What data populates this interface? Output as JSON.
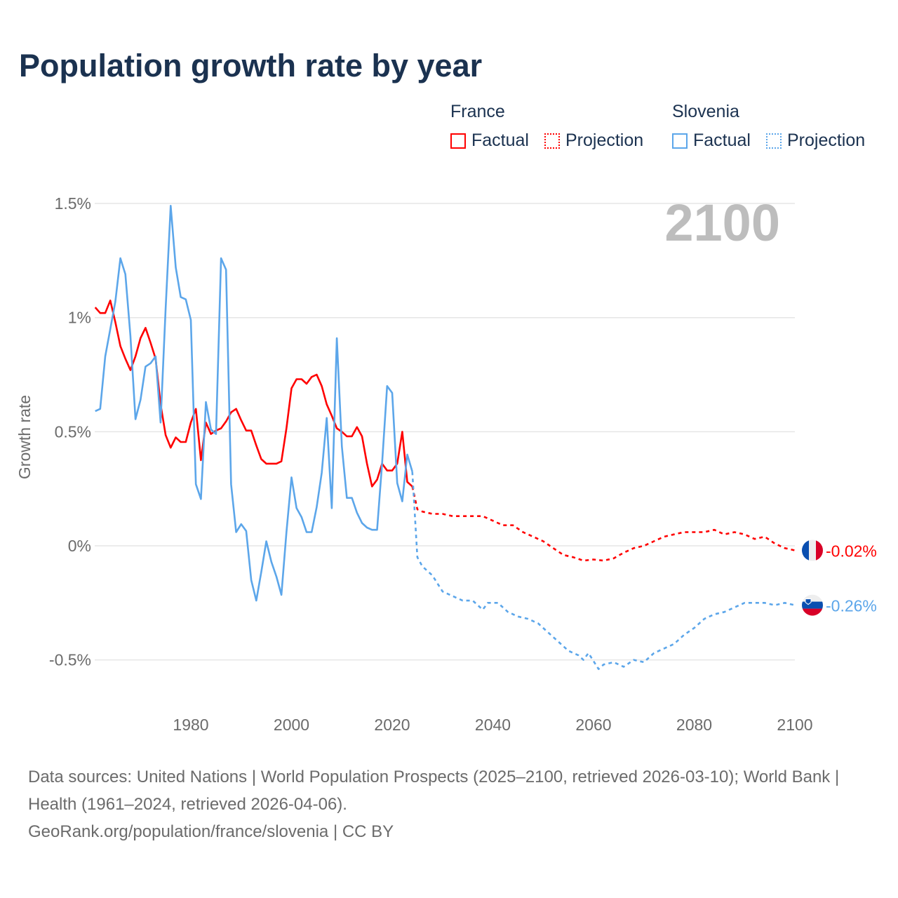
{
  "title": "Population growth rate by year",
  "current_year_label": "2100",
  "legend": {
    "groups": [
      {
        "name": "France",
        "factual": "Factual",
        "projection": "Projection",
        "color": "#ff0000"
      },
      {
        "name": "Slovenia",
        "factual": "Factual",
        "projection": "Projection",
        "color": "#5ca6ea"
      }
    ]
  },
  "end_labels": {
    "france": "-0.02%",
    "slovenia": "-0.26%"
  },
  "footer": {
    "sources": "Data sources: United Nations | World Population Prospects (2025–2100, retrieved 2026-03-10); World Bank | Health (1961–2024, retrieved 2026-04-06).",
    "link": "GeoRank.org/population/france/slovenia | CC BY"
  },
  "chart_data": {
    "type": "line",
    "title": "Population growth rate by year",
    "xlabel": "",
    "ylabel": "Growth rate",
    "xlim": [
      1961,
      2100
    ],
    "ylim": [
      -0.7,
      1.55
    ],
    "x_ticks": [
      1980,
      2000,
      2020,
      2040,
      2060,
      2080,
      2100
    ],
    "x_tick_labels": [
      "1980",
      "2000",
      "2020",
      "2040",
      "2060",
      "2080",
      "2100"
    ],
    "y_ticks": [
      -0.5,
      0,
      0.5,
      1,
      1.5
    ],
    "y_tick_labels": [
      "-0.5%",
      "0%",
      "0.5%",
      "1%",
      "1.5%"
    ],
    "grid": true,
    "legend_placement": "top-right",
    "series": [
      {
        "name": "France Factual",
        "color": "#ff0000",
        "dashed": false,
        "x": [
          1961,
          1962,
          1963,
          1964,
          1965,
          1966,
          1967,
          1968,
          1969,
          1970,
          1971,
          1972,
          1973,
          1974,
          1975,
          1976,
          1977,
          1978,
          1979,
          1980,
          1981,
          1982,
          1983,
          1984,
          1985,
          1986,
          1987,
          1988,
          1989,
          1990,
          1991,
          1992,
          1993,
          1994,
          1995,
          1996,
          1997,
          1998,
          1999,
          2000,
          2001,
          2002,
          2003,
          2004,
          2005,
          2006,
          2007,
          2008,
          2009,
          2010,
          2011,
          2012,
          2013,
          2014,
          2015,
          2016,
          2017,
          2018,
          2019,
          2020,
          2021,
          2022,
          2023,
          2024
        ],
        "y": [
          1.045,
          1.02,
          1.02,
          1.075,
          0.98,
          0.875,
          0.82,
          0.77,
          0.83,
          0.91,
          0.955,
          0.89,
          0.82,
          0.62,
          0.485,
          0.43,
          0.475,
          0.455,
          0.455,
          0.54,
          0.6,
          0.375,
          0.54,
          0.49,
          0.505,
          0.515,
          0.545,
          0.585,
          0.6,
          0.55,
          0.505,
          0.505,
          0.44,
          0.38,
          0.36,
          0.36,
          0.36,
          0.37,
          0.515,
          0.69,
          0.73,
          0.73,
          0.71,
          0.74,
          0.75,
          0.7,
          0.62,
          0.57,
          0.515,
          0.5,
          0.48,
          0.48,
          0.52,
          0.48,
          0.36,
          0.26,
          0.29,
          0.36,
          0.33,
          0.33,
          0.36,
          0.5,
          0.28,
          0.26
        ]
      },
      {
        "name": "France Projection",
        "color": "#ff0000",
        "dashed": true,
        "x": [
          2024,
          2025,
          2026,
          2028,
          2030,
          2032,
          2034,
          2036,
          2038,
          2040,
          2042,
          2044,
          2046,
          2048,
          2050,
          2052,
          2054,
          2056,
          2058,
          2060,
          2062,
          2064,
          2066,
          2068,
          2070,
          2072,
          2074,
          2076,
          2078,
          2080,
          2082,
          2084,
          2086,
          2088,
          2090,
          2092,
          2094,
          2096,
          2098,
          2100
        ],
        "y": [
          0.26,
          0.16,
          0.15,
          0.14,
          0.14,
          0.13,
          0.13,
          0.13,
          0.13,
          0.11,
          0.09,
          0.09,
          0.06,
          0.04,
          0.02,
          -0.01,
          -0.04,
          -0.05,
          -0.065,
          -0.06,
          -0.065,
          -0.055,
          -0.03,
          -0.01,
          0.0,
          0.02,
          0.04,
          0.05,
          0.06,
          0.06,
          0.06,
          0.07,
          0.05,
          0.06,
          0.05,
          0.03,
          0.04,
          0.01,
          -0.01,
          -0.02
        ]
      },
      {
        "name": "Slovenia Factual",
        "color": "#5ca6ea",
        "dashed": false,
        "x": [
          1961,
          1962,
          1963,
          1964,
          1965,
          1966,
          1967,
          1968,
          1969,
          1970,
          1971,
          1972,
          1973,
          1974,
          1975,
          1976,
          1977,
          1978,
          1979,
          1980,
          1981,
          1982,
          1983,
          1984,
          1985,
          1986,
          1987,
          1988,
          1989,
          1990,
          1991,
          1992,
          1993,
          1994,
          1995,
          1996,
          1997,
          1998,
          1999,
          2000,
          2001,
          2002,
          2003,
          2004,
          2005,
          2006,
          2007,
          2008,
          2009,
          2010,
          2011,
          2012,
          2013,
          2014,
          2015,
          2016,
          2017,
          2018,
          2019,
          2020,
          2021,
          2022,
          2023,
          2024
        ],
        "y": [
          0.59,
          0.6,
          0.83,
          0.95,
          1.07,
          1.26,
          1.19,
          0.92,
          0.555,
          0.64,
          0.785,
          0.8,
          0.83,
          0.54,
          1.04,
          1.49,
          1.22,
          1.09,
          1.08,
          0.99,
          0.27,
          0.205,
          0.63,
          0.51,
          0.49,
          1.26,
          1.21,
          0.27,
          0.06,
          0.095,
          0.065,
          -0.15,
          -0.24,
          -0.115,
          0.02,
          -0.07,
          -0.135,
          -0.215,
          0.06,
          0.3,
          0.165,
          0.125,
          0.06,
          0.06,
          0.17,
          0.32,
          0.56,
          0.165,
          0.91,
          0.435,
          0.21,
          0.21,
          0.145,
          0.1,
          0.08,
          0.07,
          0.07,
          0.36,
          0.7,
          0.67,
          0.275,
          0.195,
          0.4,
          0.325
        ]
      },
      {
        "name": "Slovenia Projection",
        "color": "#5ca6ea",
        "dashed": true,
        "x": [
          2024,
          2025,
          2026,
          2028,
          2030,
          2032,
          2034,
          2036,
          2038,
          2039,
          2041,
          2043,
          2045,
          2047,
          2049,
          2051,
          2053,
          2055,
          2057,
          2058,
          2059,
          2061,
          2062,
          2064,
          2066,
          2068,
          2070,
          2072,
          2074,
          2076,
          2078,
          2080,
          2082,
          2084,
          2086,
          2088,
          2090,
          2092,
          2094,
          2096,
          2098,
          2100
        ],
        "y": [
          0.325,
          -0.05,
          -0.09,
          -0.13,
          -0.2,
          -0.22,
          -0.24,
          -0.24,
          -0.28,
          -0.25,
          -0.25,
          -0.29,
          -0.31,
          -0.32,
          -0.34,
          -0.38,
          -0.42,
          -0.46,
          -0.48,
          -0.5,
          -0.47,
          -0.54,
          -0.52,
          -0.51,
          -0.53,
          -0.5,
          -0.51,
          -0.47,
          -0.45,
          -0.43,
          -0.39,
          -0.36,
          -0.32,
          -0.3,
          -0.29,
          -0.27,
          -0.25,
          -0.25,
          -0.25,
          -0.26,
          -0.25,
          -0.26
        ]
      }
    ]
  }
}
